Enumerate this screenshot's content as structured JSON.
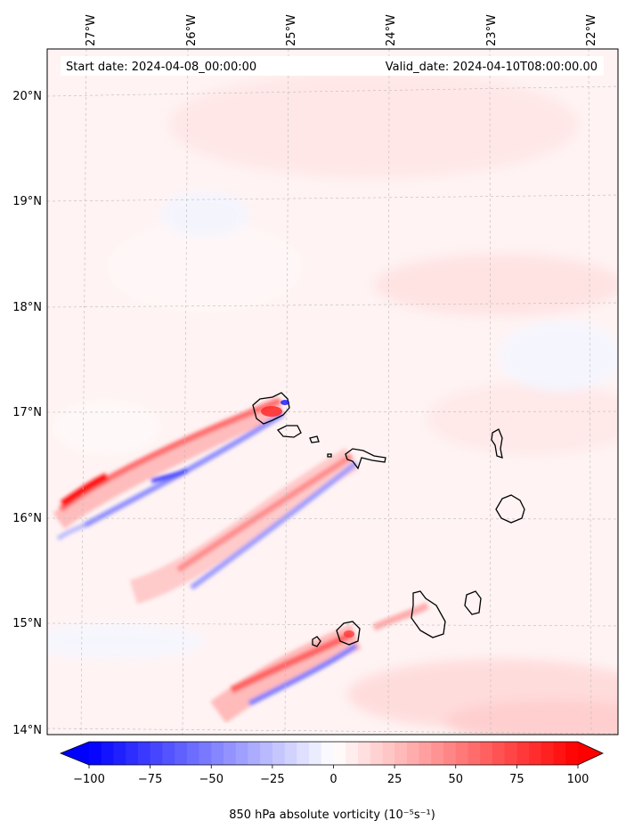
{
  "map": {
    "start_label": "Start date: 2024-04-08_00:00:00",
    "valid_label": "Valid_date: 2024-04-10T08:00:00.00",
    "lon_labels": [
      "27°W",
      "26°W",
      "25°W",
      "24°W",
      "23°W",
      "22°W"
    ],
    "lon_values": [
      -27,
      -26,
      -25,
      -24,
      -23,
      -22
    ],
    "lat_labels": [
      "20°N",
      "19°N",
      "18°N",
      "17°N",
      "16°N",
      "15°N",
      "14°N"
    ],
    "lat_values": [
      20,
      19,
      18,
      17,
      16,
      15,
      14
    ],
    "extent": {
      "lon_min": -27.4,
      "lon_max": -21.8,
      "lat_min": 13.95,
      "lat_max": 20.4
    }
  },
  "colorbar": {
    "label": "850 hPa absolute vorticity (10⁻⁵s⁻¹)",
    "ticks": [
      "−100",
      "−75",
      "−50",
      "−25",
      "0",
      "25",
      "50",
      "75",
      "100"
    ],
    "tick_values": [
      -100,
      -75,
      -50,
      -25,
      0,
      25,
      50,
      75,
      100
    ],
    "min": -100,
    "max": 100,
    "colormap": "bwr",
    "extend": "both",
    "low_color": "#0000ff",
    "mid_color": "#ffffff",
    "high_color": "#ff0000"
  }
}
